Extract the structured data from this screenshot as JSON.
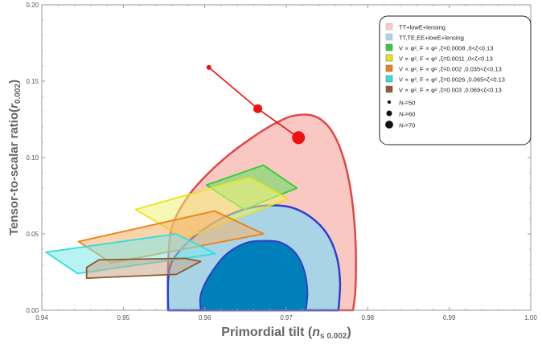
{
  "chart_data": {
    "type": "scatter",
    "title": "",
    "xlabel": "Primordial tilt (n_s 0.002)",
    "xlabel_main": "Primordial tilt (",
    "xlabel_var": "n",
    "xlabel_sub": "s 0.002",
    "xlabel_close": ")",
    "ylabel": "Tensor-to-scalar ratio(r_0.002)",
    "ylabel_main": "Tensor-to-scalar ratio(",
    "ylabel_var": "r",
    "ylabel_sub": "0.002",
    "ylabel_close": ")",
    "xlim": [
      0.94,
      1.0
    ],
    "ylim": [
      0.0,
      0.2
    ],
    "xticks": [
      "0.94",
      "0.95",
      "0.96",
      "0.97",
      "0.98",
      "0.99",
      "1.00"
    ],
    "yticks": [
      "0.00",
      "0.05",
      "0.10",
      "0.15",
      "0.20"
    ],
    "legend_position": "top-right",
    "planck_contours": [
      {
        "name": "TT+lowE+lensing",
        "fill": "#f9c8c2",
        "stroke": "#e04848",
        "outer": [
          [
            0.9555,
            0.0
          ],
          [
            0.9555,
            0.03
          ],
          [
            0.956,
            0.055
          ],
          [
            0.958,
            0.075
          ],
          [
            0.9605,
            0.09
          ],
          [
            0.963,
            0.102
          ],
          [
            0.9658,
            0.113
          ],
          [
            0.9685,
            0.122
          ],
          [
            0.971,
            0.1275
          ],
          [
            0.9735,
            0.127
          ],
          [
            0.9755,
            0.118
          ],
          [
            0.977,
            0.1
          ],
          [
            0.978,
            0.075
          ],
          [
            0.9785,
            0.045
          ],
          [
            0.9785,
            0.015
          ],
          [
            0.9782,
            0.0
          ]
        ],
        "inner": [
          [
            0.9625,
            0.0
          ],
          [
            0.9625,
            0.02
          ],
          [
            0.9635,
            0.035
          ],
          [
            0.9655,
            0.048
          ],
          [
            0.968,
            0.0565
          ],
          [
            0.9705,
            0.057
          ],
          [
            0.9725,
            0.0525
          ],
          [
            0.974,
            0.042
          ],
          [
            0.9748,
            0.028
          ],
          [
            0.9752,
            0.012
          ],
          [
            0.975,
            0.0
          ]
        ]
      },
      {
        "name": "TT,TE,EE+lowE+lensing",
        "fill": "#a8d4e6",
        "stroke": "#2f3fc8",
        "outer": [
          [
            0.9555,
            0.0
          ],
          [
            0.9555,
            0.02
          ],
          [
            0.956,
            0.032
          ],
          [
            0.958,
            0.045
          ],
          [
            0.961,
            0.057
          ],
          [
            0.9645,
            0.0655
          ],
          [
            0.9675,
            0.0685
          ],
          [
            0.9705,
            0.0675
          ],
          [
            0.973,
            0.061
          ],
          [
            0.975,
            0.05
          ],
          [
            0.9762,
            0.035
          ],
          [
            0.9766,
            0.018
          ],
          [
            0.9764,
            0.0
          ]
        ],
        "inner": [
          [
            0.9595,
            0.0
          ],
          [
            0.9595,
            0.01
          ],
          [
            0.9605,
            0.022
          ],
          [
            0.9625,
            0.036
          ],
          [
            0.965,
            0.044
          ],
          [
            0.9675,
            0.0455
          ],
          [
            0.9695,
            0.044
          ],
          [
            0.9712,
            0.037
          ],
          [
            0.9722,
            0.026
          ],
          [
            0.9726,
            0.012
          ],
          [
            0.9724,
            0.0
          ]
        ],
        "inner_fill": "#0080bb"
      }
    ],
    "series": [
      {
        "name": "V ∝ φ², F ∝ φ² ,ξ=0.0008 ,0<ζ<0.13",
        "color": "#5ee05e",
        "stroke": "#33cc33",
        "region": [
          [
            0.9602,
            0.082
          ],
          [
            0.9672,
            0.095
          ],
          [
            0.9713,
            0.08
          ],
          [
            0.9648,
            0.066
          ]
        ]
      },
      {
        "name": "V ∝ φ², F ∝ φ² ,ξ=0.0011 ,0<ζ<0.13",
        "color": "#f2f27a",
        "stroke": "#e6e619",
        "region": [
          [
            0.9515,
            0.066
          ],
          [
            0.9655,
            0.087
          ],
          [
            0.9702,
            0.073
          ],
          [
            0.9575,
            0.047
          ]
        ]
      },
      {
        "name": "V ∝ φ², F ∝ φ² ,ξ=0.002 ,0.035<ζ<0.13",
        "color": "#f4b06a",
        "stroke": "#ef7f16",
        "region": [
          [
            0.9445,
            0.045
          ],
          [
            0.9612,
            0.065
          ],
          [
            0.9672,
            0.05
          ],
          [
            0.9485,
            0.031
          ]
        ]
      },
      {
        "name": "V ∝ φ², F ∝ φ² ,ξ=0.0026 ,0.065<ζ<0.13",
        "color": "#7fe8e8",
        "stroke": "#33dddd",
        "region": [
          [
            0.9405,
            0.038
          ],
          [
            0.9565,
            0.05
          ],
          [
            0.9613,
            0.037
          ],
          [
            0.9444,
            0.024
          ]
        ]
      },
      {
        "name": "V ∝ φ², F ∝ φ² ,ξ=0.003 ,0.069<ζ<0.13",
        "color": "#c7a788",
        "stroke": "#8c5a2e",
        "region": [
          [
            0.9455,
            0.028
          ],
          [
            0.9455,
            0.021
          ],
          [
            0.9565,
            0.0235
          ],
          [
            0.9595,
            0.032
          ],
          [
            0.9575,
            0.034
          ],
          [
            0.947,
            0.033
          ]
        ]
      }
    ],
    "ne_points": [
      {
        "label": "N*=50",
        "x": 0.9605,
        "y": 0.159,
        "size": "small"
      },
      {
        "label": "N*=60",
        "x": 0.9665,
        "y": 0.132,
        "size": "medium"
      },
      {
        "label": "N*=70",
        "x": 0.9715,
        "y": 0.113,
        "size": "large"
      }
    ],
    "ne_legend": [
      {
        "prefix": "N",
        "sub": "*",
        "value": "=50",
        "size": "small"
      },
      {
        "prefix": "N",
        "sub": "*",
        "value": "=60",
        "size": "medium"
      },
      {
        "prefix": "N",
        "sub": "*",
        "value": "=70",
        "size": "large"
      }
    ],
    "ne_color": "#ee1111"
  }
}
